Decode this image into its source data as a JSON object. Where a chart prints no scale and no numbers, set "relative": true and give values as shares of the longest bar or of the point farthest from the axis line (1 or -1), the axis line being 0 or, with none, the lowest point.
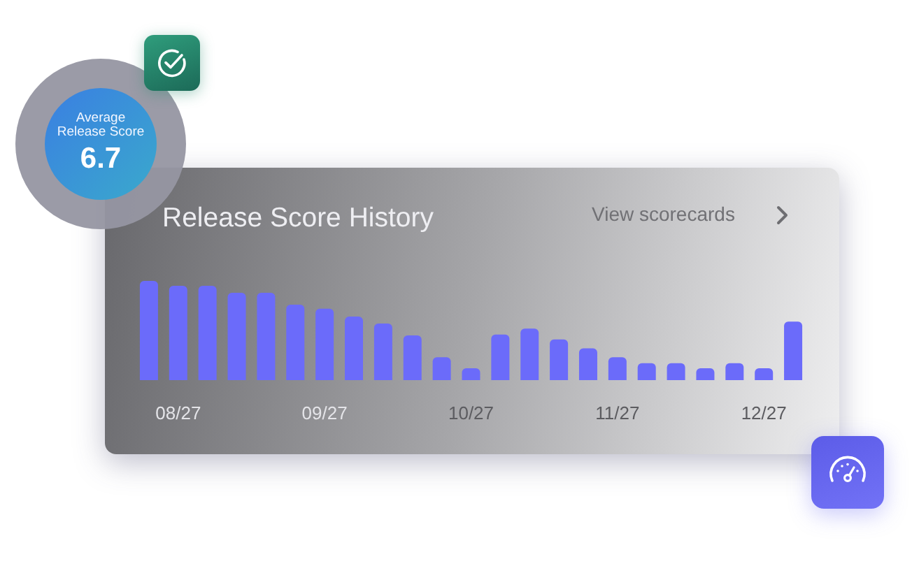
{
  "chart_data": {
    "type": "bar",
    "title": "Release Score History",
    "annotations": [
      "Average Release Score",
      "6.7",
      "View scorecards"
    ],
    "categories": [
      null,
      "08/27",
      null,
      null,
      null,
      null,
      "09/27",
      null,
      null,
      null,
      null,
      "10/27",
      null,
      null,
      null,
      null,
      "11/27",
      null,
      null,
      null,
      null,
      "12/27",
      null
    ],
    "values": [
      1,
      0.95,
      0.95,
      0.88,
      0.88,
      0.76,
      0.72,
      0.64,
      0.57,
      0.45,
      0.23,
      0.12,
      0.46,
      0.52,
      0.41,
      0.32,
      0.23,
      0.17,
      0.17,
      0.12,
      0.17,
      0.12,
      0.59
    ],
    "color": "#6b6bfa",
    "relative": true
  }
}
